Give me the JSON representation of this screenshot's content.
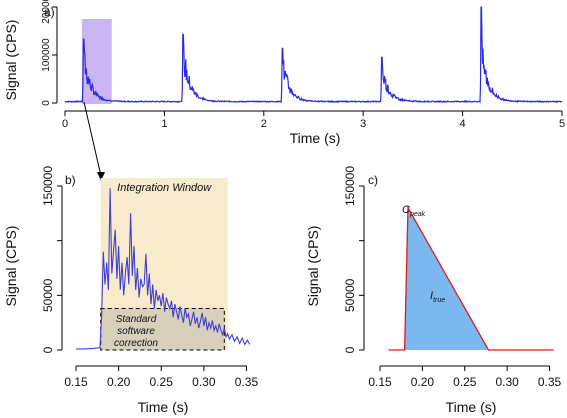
{
  "chart_data": [
    {
      "panel": "a)",
      "type": "line",
      "xlabel": "Time (s)",
      "ylabel": "Signal (CPS)",
      "xlim": [
        0,
        5
      ],
      "ylim": [
        0,
        200000
      ],
      "x_ticks": [
        0,
        1,
        2,
        3,
        4,
        5
      ],
      "y_ticks": [
        0,
        100000,
        200000
      ],
      "color": "#2b2bdb",
      "highlight_window": {
        "x": [
          0.17,
          0.47
        ],
        "color": "#c9b6f2"
      },
      "baseline_level": 2000,
      "pulse_starts": [
        0.18,
        1.18,
        2.18,
        3.18,
        4.18
      ],
      "pulse_peaks": [
        140000,
        150000,
        120000,
        100000,
        160000
      ],
      "pulse_spike_max": [
        140000,
        150000,
        120000,
        100000,
        210000
      ]
    },
    {
      "panel": "b)",
      "type": "line",
      "xlabel": "Time (s)",
      "ylabel": "Signal (CPS)",
      "xlim": [
        0.15,
        0.36
      ],
      "ylim": [
        0,
        150000
      ],
      "x_ticks": [
        0.15,
        0.2,
        0.25,
        0.3,
        0.35
      ],
      "y_ticks": [
        0,
        50000,
        150000
      ],
      "color": "#4040d0",
      "integration_window": {
        "x": [
          0.179,
          0.328
        ],
        "label": "Integration Window",
        "color": "#f7ebcc"
      },
      "standard_correction": {
        "x": [
          0.179,
          0.324
        ],
        "y": 38000,
        "label_lines": [
          "Standard",
          "software",
          "correction"
        ]
      },
      "x": [
        0.15,
        0.16,
        0.17,
        0.178,
        0.18,
        0.182,
        0.184,
        0.186,
        0.188,
        0.19,
        0.192,
        0.194,
        0.196,
        0.198,
        0.2,
        0.202,
        0.204,
        0.206,
        0.208,
        0.21,
        0.212,
        0.214,
        0.216,
        0.218,
        0.22,
        0.222,
        0.224,
        0.226,
        0.228,
        0.23,
        0.232,
        0.234,
        0.236,
        0.238,
        0.24,
        0.242,
        0.244,
        0.246,
        0.248,
        0.25,
        0.252,
        0.254,
        0.256,
        0.258,
        0.26,
        0.262,
        0.264,
        0.266,
        0.268,
        0.27,
        0.272,
        0.274,
        0.276,
        0.278,
        0.28,
        0.282,
        0.284,
        0.286,
        0.288,
        0.29,
        0.292,
        0.294,
        0.296,
        0.298,
        0.3,
        0.302,
        0.304,
        0.306,
        0.308,
        0.31,
        0.312,
        0.314,
        0.316,
        0.318,
        0.32,
        0.322,
        0.324,
        0.326,
        0.328,
        0.33,
        0.333,
        0.336,
        0.339,
        0.342,
        0.345,
        0.348,
        0.351,
        0.354
      ],
      "y": [
        1000,
        1000,
        1500,
        2000,
        30000,
        90000,
        60000,
        80000,
        55000,
        148000,
        70000,
        90000,
        110000,
        65000,
        95000,
        55000,
        80000,
        50000,
        70000,
        85000,
        60000,
        125000,
        68000,
        95000,
        55000,
        75000,
        48000,
        65000,
        58000,
        60000,
        88000,
        50000,
        70000,
        42000,
        60000,
        38000,
        55000,
        45000,
        50000,
        40000,
        52000,
        35000,
        48000,
        42000,
        38000,
        45000,
        30000,
        42000,
        35000,
        28000,
        40000,
        32000,
        25000,
        38000,
        30000,
        33000,
        22000,
        28000,
        35000,
        24000,
        30000,
        20000,
        26000,
        34000,
        22000,
        30000,
        18000,
        25000,
        20000,
        27000,
        18000,
        22000,
        16000,
        24000,
        18000,
        14000,
        20000,
        12000,
        15000,
        10000,
        14000,
        8000,
        12000,
        6000,
        11000,
        5000,
        9000,
        5000
      ]
    },
    {
      "panel": "c)",
      "type": "area",
      "xlabel": "Time (s)",
      "ylabel": "Signal (CPS)",
      "xlim": [
        0.15,
        0.36
      ],
      "ylim": [
        0,
        150000
      ],
      "x_ticks": [
        0.15,
        0.2,
        0.25,
        0.3,
        0.35
      ],
      "y_ticks": [
        0,
        50000,
        150000
      ],
      "fill_color": "#7bb8f0",
      "line_color": "#e01b1b",
      "x": [
        0.16,
        0.179,
        0.183,
        0.278,
        0.355
      ],
      "y": [
        0,
        0,
        130000,
        0,
        0
      ],
      "peak_label": {
        "main": "C",
        "sub": "peak"
      },
      "area_label": {
        "main": "I",
        "sub": "true"
      }
    }
  ]
}
